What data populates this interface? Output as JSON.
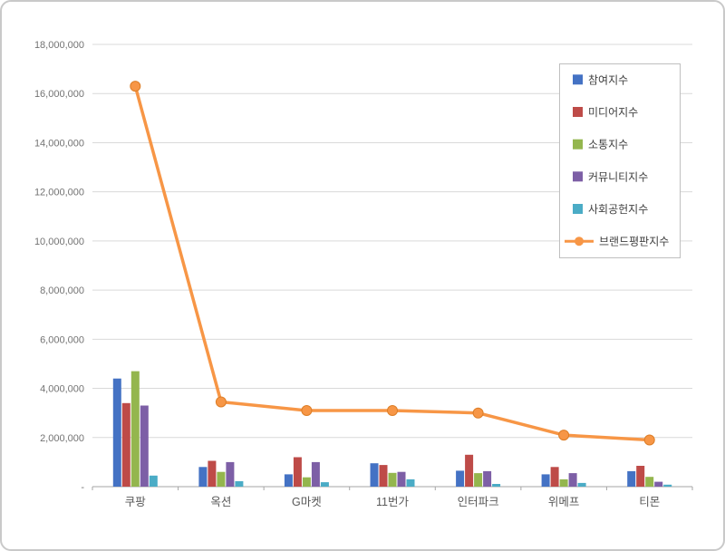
{
  "chart_data": {
    "type": "bar",
    "title": "",
    "categories": [
      "쿠팡",
      "옥션",
      "G마켓",
      "11번가",
      "인터파크",
      "위메프",
      "티몬"
    ],
    "bar_series": [
      {
        "name": "참여지수",
        "color": "#4472C4",
        "values": [
          4400000,
          800000,
          500000,
          950000,
          650000,
          500000,
          630000
        ]
      },
      {
        "name": "미디어지수",
        "color": "#BE4B48",
        "values": [
          3400000,
          1050000,
          1200000,
          880000,
          1300000,
          800000,
          850000
        ]
      },
      {
        "name": "소통지수",
        "color": "#94B64E",
        "values": [
          4700000,
          600000,
          380000,
          560000,
          550000,
          300000,
          400000
        ]
      },
      {
        "name": "커뮤니티지수",
        "color": "#7D5FA6",
        "values": [
          3300000,
          1000000,
          1000000,
          600000,
          630000,
          550000,
          200000
        ]
      },
      {
        "name": "사회공헌지수",
        "color": "#4BACC6",
        "values": [
          450000,
          220000,
          180000,
          300000,
          110000,
          150000,
          80000
        ]
      }
    ],
    "line_series": {
      "name": "브랜드평판지수",
      "color": "#F79646",
      "marker_stroke": "#DD7E27",
      "values": [
        16300000,
        3450000,
        3100000,
        3100000,
        3000000,
        2100000,
        1900000
      ]
    },
    "ylim": [
      0,
      18000000
    ],
    "ytick_step": 2000000,
    "y_tick_labels": [
      "-",
      "2,000,000",
      "4,000,000",
      "6,000,000",
      "8,000,000",
      "10,000,000",
      "12,000,000",
      "14,000,000",
      "16,000,000",
      "18,000,000"
    ],
    "grid": true,
    "legend_position": "right-top"
  }
}
